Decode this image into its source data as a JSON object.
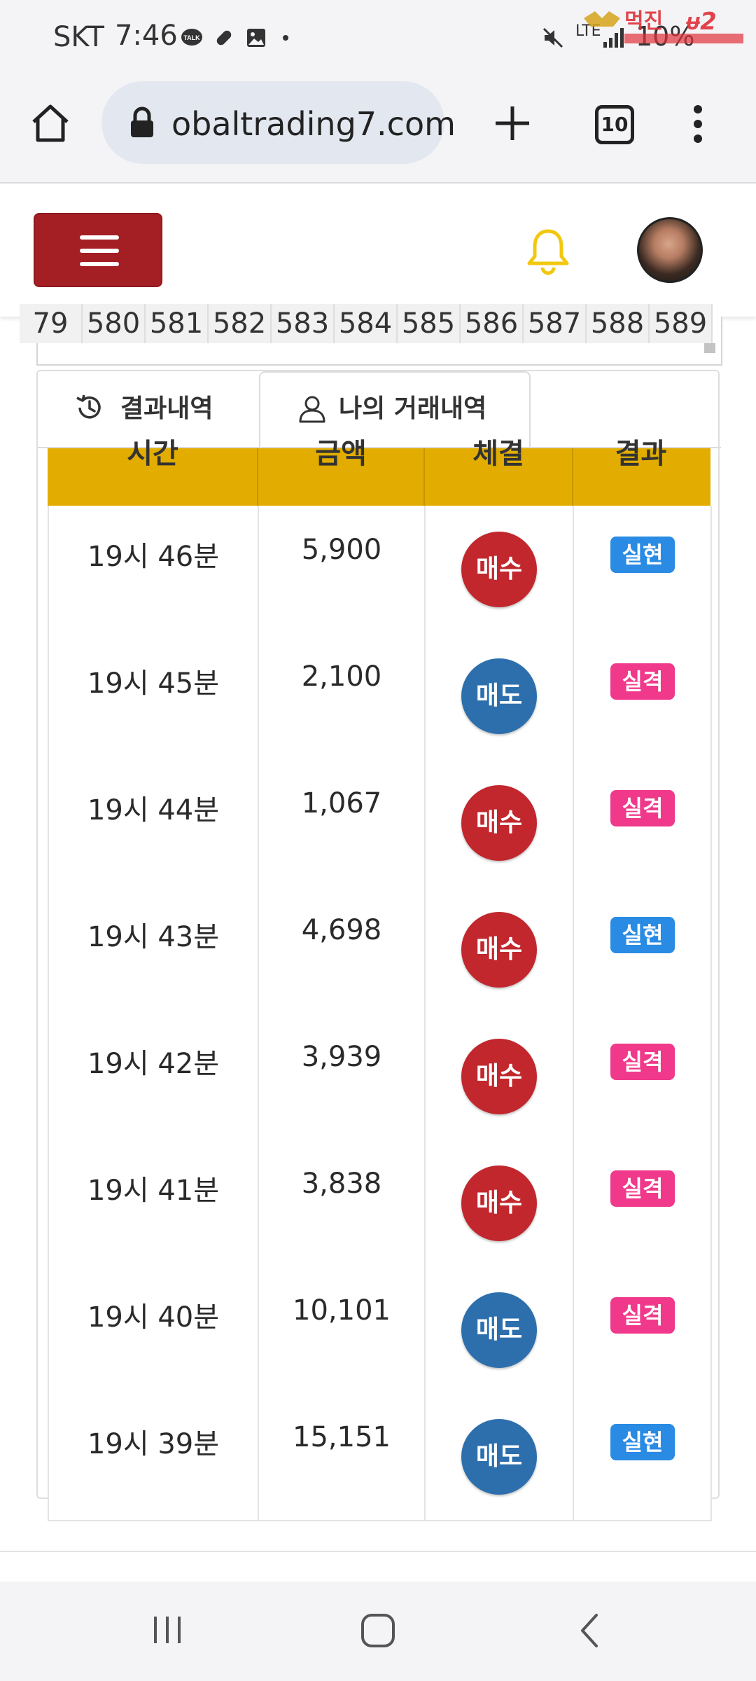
{
  "status_bar": {
    "carrier": "SKT",
    "time": "7:46",
    "battery": "10%",
    "network": "LTE"
  },
  "browser": {
    "url": "obaltrading7.com",
    "tab_count": "10"
  },
  "header": {
    "menu_icon": "hamburger-icon",
    "bell_icon": "bell-icon",
    "bell_color": "#f2c80f",
    "accent_color": "#a31f24"
  },
  "number_strip": [
    "79",
    "580",
    "581",
    "582",
    "583",
    "584",
    "585",
    "586",
    "587",
    "588",
    "589"
  ],
  "tabs": [
    {
      "label": "결과내역",
      "icon": "history-icon"
    },
    {
      "label": "나의 거래내역",
      "icon": "user-icon"
    }
  ],
  "table": {
    "headers": [
      "시간",
      "금액",
      "체결",
      "결과"
    ],
    "rows": [
      {
        "time": "19시 46분",
        "amount": "5,900",
        "direction": "매수",
        "result": "실현"
      },
      {
        "time": "19시 45분",
        "amount": "2,100",
        "direction": "매도",
        "result": "실격"
      },
      {
        "time": "19시 44분",
        "amount": "1,067",
        "direction": "매수",
        "result": "실격"
      },
      {
        "time": "19시 43분",
        "amount": "4,698",
        "direction": "매수",
        "result": "실현"
      },
      {
        "time": "19시 42분",
        "amount": "3,939",
        "direction": "매수",
        "result": "실격"
      },
      {
        "time": "19시 41분",
        "amount": "3,838",
        "direction": "매수",
        "result": "실격"
      },
      {
        "time": "19시 40분",
        "amount": "10,101",
        "direction": "매도",
        "result": "실격"
      },
      {
        "time": "19시 39분",
        "amount": "15,151",
        "direction": "매도",
        "result": "실현"
      }
    ]
  },
  "colors": {
    "buy": "#c1272d",
    "sell": "#2d6fad",
    "realized": "#2a8be4",
    "failed": "#f0398b",
    "header_gold": "#e2ad00"
  }
}
